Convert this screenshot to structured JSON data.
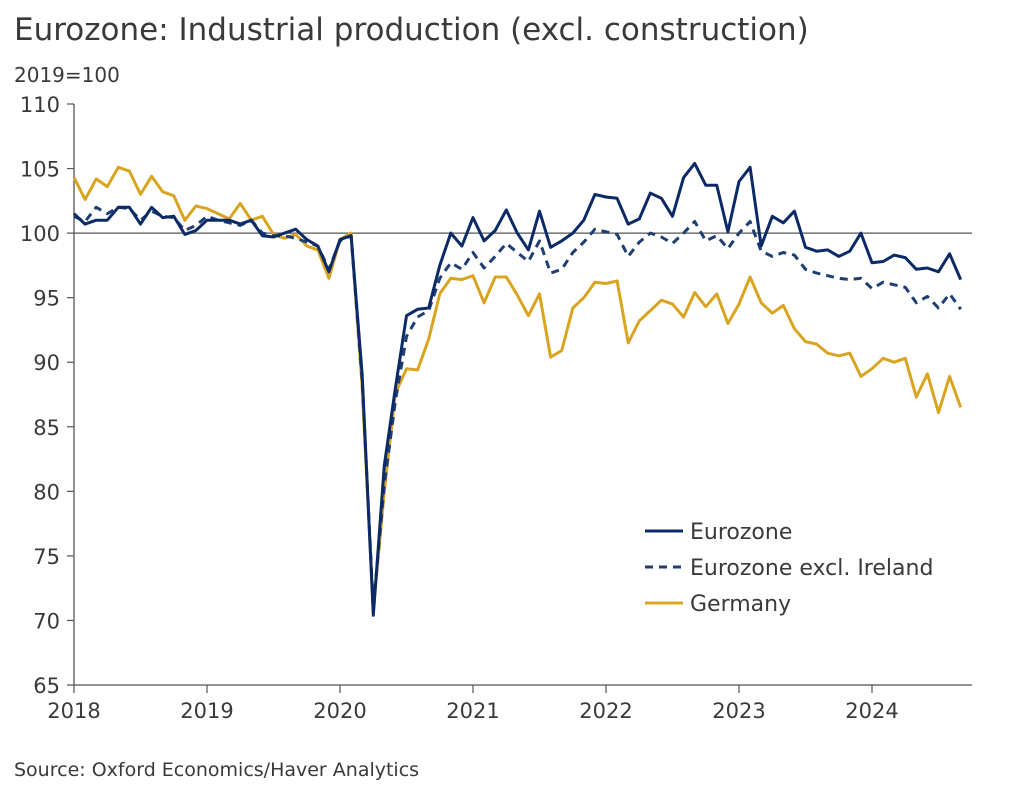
{
  "chart_data": {
    "type": "line",
    "title": "Eurozone: Industrial production (excl. construction)",
    "ylabel": "2019=100",
    "source": "Source: Oxford Economics/Haver Analytics",
    "x_start": "2018-01",
    "frequency": "monthly",
    "xlim": [
      "2018-01",
      "2024-09"
    ],
    "ylim": [
      65,
      110
    ],
    "yticks": [
      "65",
      "70",
      "75",
      "80",
      "85",
      "90",
      "95",
      "100",
      "105",
      "110"
    ],
    "xticks": [
      "2018",
      "2019",
      "2020",
      "2021",
      "2022",
      "2023",
      "2024"
    ],
    "reference_line": 100,
    "grid": false,
    "legend_position": "bottom-right",
    "series": [
      {
        "name": "Eurozone",
        "color": "#0b2a66",
        "style": "solid",
        "values": [
          101.5,
          100.7,
          101.0,
          101.0,
          102.0,
          102.0,
          100.7,
          102.0,
          101.2,
          101.3,
          99.9,
          100.2,
          101.0,
          101.0,
          101.0,
          100.7,
          101.0,
          99.8,
          99.7,
          100.0,
          100.3,
          99.5,
          99.0,
          97.0,
          99.5,
          99.8,
          89.0,
          70.4,
          82.0,
          88.0,
          93.6,
          94.1,
          94.2,
          97.5,
          100.0,
          99.0,
          101.2,
          99.4,
          100.2,
          101.8,
          100.0,
          98.7,
          101.7,
          98.9,
          99.4,
          100.0,
          101.0,
          103.0,
          102.8,
          102.7,
          100.7,
          101.1,
          103.1,
          102.7,
          101.3,
          104.3,
          105.4,
          103.7,
          103.7,
          100.1,
          104.0,
          105.1,
          99.0,
          101.3,
          100.8,
          101.7,
          98.9,
          98.6,
          98.7,
          98.2,
          98.6,
          100.0,
          97.7,
          97.8,
          98.3,
          98.1,
          97.2,
          97.3,
          97.0,
          98.4,
          96.4
        ]
      },
      {
        "name": "Eurozone excl. Ireland",
        "color": "#1f3f73",
        "style": "dashed",
        "values": [
          101.3,
          100.9,
          102.0,
          101.5,
          102.0,
          101.9,
          101.0,
          101.7,
          101.3,
          101.2,
          100.2,
          100.6,
          101.3,
          101.0,
          100.8,
          100.6,
          101.0,
          100.0,
          99.8,
          99.8,
          99.6,
          99.3,
          99.0,
          97.2,
          99.4,
          99.8,
          88.5,
          71.0,
          80.5,
          87.0,
          92.0,
          93.5,
          94.0,
          96.5,
          97.7,
          97.2,
          98.5,
          97.3,
          98.2,
          99.2,
          98.5,
          97.8,
          99.4,
          96.9,
          97.2,
          98.5,
          99.3,
          100.3,
          100.1,
          99.9,
          98.2,
          99.3,
          100.0,
          99.7,
          99.2,
          100.0,
          100.9,
          99.4,
          99.8,
          98.8,
          100.0,
          100.9,
          98.6,
          98.2,
          98.5,
          98.3,
          97.2,
          96.9,
          96.7,
          96.5,
          96.4,
          96.5,
          95.7,
          96.2,
          96.0,
          95.8,
          94.6,
          95.1,
          94.2,
          95.3,
          94.1
        ]
      },
      {
        "name": "Germany",
        "color": "#d9a520",
        "style": "solid",
        "values": [
          104.3,
          102.6,
          104.2,
          103.6,
          105.1,
          104.8,
          103.0,
          104.4,
          103.2,
          102.9,
          101.0,
          102.1,
          101.9,
          101.5,
          101.1,
          102.3,
          101.0,
          101.3,
          99.9,
          99.6,
          99.9,
          99.0,
          98.7,
          96.5,
          99.5,
          100.0,
          88.0,
          70.8,
          80.0,
          87.6,
          89.5,
          89.4,
          91.8,
          95.3,
          96.5,
          96.4,
          96.7,
          94.6,
          96.6,
          96.6,
          95.2,
          93.6,
          95.3,
          90.4,
          90.9,
          94.2,
          95.0,
          96.2,
          96.1,
          96.3,
          91.5,
          93.2,
          94.0,
          94.8,
          94.5,
          93.5,
          95.4,
          94.3,
          95.3,
          93.0,
          94.5,
          96.6,
          94.6,
          93.8,
          94.4,
          92.6,
          91.6,
          91.4,
          90.7,
          90.5,
          90.7,
          88.9,
          89.5,
          90.3,
          90.0,
          90.3,
          87.3,
          89.1,
          86.1,
          88.9,
          86.5
        ]
      }
    ]
  }
}
